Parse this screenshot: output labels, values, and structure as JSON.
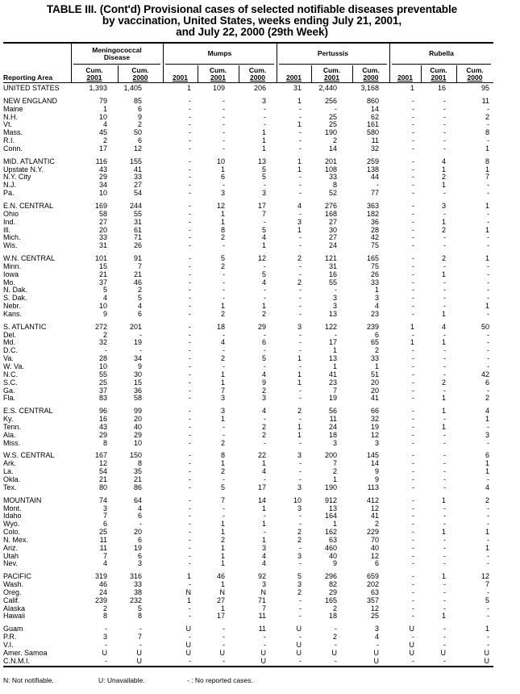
{
  "title": [
    "TABLE III. (Cont'd) Provisional cases of selected notifiable diseases preventable",
    "by vaccination, United States, weeks ending July 21, 2001,",
    "and July 22, 2000 (29th Week)"
  ],
  "header": {
    "reporting_area": "Reporting Area",
    "groups": [
      {
        "line1": "Meningococcal",
        "line2": "Disease"
      },
      {
        "line1": "Mumps",
        "line2": ""
      },
      {
        "line1": "Pertussis",
        "line2": ""
      },
      {
        "line1": "Rubella",
        "line2": ""
      }
    ],
    "subcols": [
      {
        "top": "Cum.",
        "bottom": "2001"
      },
      {
        "top": "Cum.",
        "bottom": "2000"
      },
      {
        "top": "",
        "bottom": "2001"
      },
      {
        "top": "Cum.",
        "bottom": "2001"
      },
      {
        "top": "Cum.",
        "bottom": "2000"
      },
      {
        "top": "",
        "bottom": "2001"
      },
      {
        "top": "Cum.",
        "bottom": "2001"
      },
      {
        "top": "Cum.",
        "bottom": "2000"
      },
      {
        "top": "",
        "bottom": "2001"
      },
      {
        "top": "Cum.",
        "bottom": "2001"
      },
      {
        "top": "Cum.",
        "bottom": "2000"
      }
    ]
  },
  "groups": [
    [
      [
        "UNITED STATES",
        "1,393",
        "1,405",
        "1",
        "109",
        "206",
        "31",
        "2,440",
        "3,168",
        "1",
        "16",
        "95"
      ]
    ],
    [
      [
        "NEW ENGLAND",
        "79",
        "85",
        "-",
        "-",
        "3",
        "1",
        "256",
        "860",
        "-",
        "-",
        "11"
      ],
      [
        "Maine",
        "1",
        "6",
        "-",
        "-",
        "-",
        "-",
        "-",
        "14",
        "-",
        "-",
        "-"
      ],
      [
        "N.H.",
        "10",
        "9",
        "-",
        "-",
        "-",
        "-",
        "25",
        "62",
        "-",
        "-",
        "2"
      ],
      [
        "Vt.",
        "4",
        "2",
        "-",
        "-",
        "-",
        "1",
        "25",
        "161",
        "-",
        "-",
        "-"
      ],
      [
        "Mass.",
        "45",
        "50",
        "-",
        "-",
        "1",
        "-",
        "190",
        "580",
        "-",
        "-",
        "8"
      ],
      [
        "R.I.",
        "2",
        "6",
        "-",
        "-",
        "1",
        "-",
        "2",
        "11",
        "-",
        "-",
        "-"
      ],
      [
        "Conn.",
        "17",
        "12",
        "-",
        "-",
        "1",
        "-",
        "14",
        "32",
        "-",
        "-",
        "1"
      ]
    ],
    [
      [
        "MID. ATLANTIC",
        "116",
        "155",
        "-",
        "10",
        "13",
        "1",
        "201",
        "259",
        "-",
        "4",
        "8"
      ],
      [
        "Upstate N.Y.",
        "43",
        "41",
        "-",
        "1",
        "5",
        "1",
        "108",
        "138",
        "-",
        "1",
        "1"
      ],
      [
        "N.Y. City",
        "29",
        "33",
        "-",
        "6",
        "5",
        "-",
        "33",
        "44",
        "-",
        "2",
        "7"
      ],
      [
        "N.J.",
        "34",
        "27",
        "-",
        "-",
        "-",
        "-",
        "8",
        "-",
        "-",
        "1",
        "-"
      ],
      [
        "Pa.",
        "10",
        "54",
        "-",
        "3",
        "3",
        "-",
        "52",
        "77",
        "-",
        "-",
        "-"
      ]
    ],
    [
      [
        "E.N. CENTRAL",
        "169",
        "244",
        "-",
        "12",
        "17",
        "4",
        "276",
        "363",
        "-",
        "3",
        "1"
      ],
      [
        "Ohio",
        "58",
        "55",
        "-",
        "1",
        "7",
        "-",
        "168",
        "182",
        "-",
        "-",
        "-"
      ],
      [
        "Ind.",
        "27",
        "31",
        "-",
        "1",
        "-",
        "3",
        "27",
        "36",
        "-",
        "1",
        "-"
      ],
      [
        "Ill.",
        "20",
        "61",
        "-",
        "8",
        "5",
        "1",
        "30",
        "28",
        "-",
        "2",
        "1"
      ],
      [
        "Mich.",
        "33",
        "71",
        "-",
        "2",
        "4",
        "-",
        "27",
        "42",
        "-",
        "-",
        "-"
      ],
      [
        "Wis.",
        "31",
        "26",
        "-",
        "-",
        "1",
        "-",
        "24",
        "75",
        "-",
        "-",
        "-"
      ]
    ],
    [
      [
        "W.N. CENTRAL",
        "101",
        "91",
        "-",
        "5",
        "12",
        "2",
        "121",
        "165",
        "-",
        "2",
        "1"
      ],
      [
        "Minn.",
        "15",
        "7",
        "-",
        "2",
        "-",
        "-",
        "31",
        "75",
        "-",
        "-",
        "-"
      ],
      [
        "Iowa",
        "21",
        "21",
        "-",
        "-",
        "5",
        "-",
        "16",
        "26",
        "-",
        "1",
        "-"
      ],
      [
        "Mo.",
        "37",
        "46",
        "-",
        "-",
        "4",
        "2",
        "55",
        "33",
        "-",
        "-",
        "-"
      ],
      [
        "N. Dak.",
        "5",
        "2",
        "-",
        "-",
        "-",
        "-",
        "-",
        "1",
        "-",
        "-",
        "-"
      ],
      [
        "S. Dak.",
        "4",
        "5",
        "-",
        "-",
        "-",
        "-",
        "3",
        "3",
        "-",
        "-",
        "-"
      ],
      [
        "Nebr.",
        "10",
        "4",
        "-",
        "1",
        "1",
        "-",
        "3",
        "4",
        "-",
        "-",
        "1"
      ],
      [
        "Kans.",
        "9",
        "6",
        "-",
        "2",
        "2",
        "-",
        "13",
        "23",
        "-",
        "1",
        "-"
      ]
    ],
    [
      [
        "S. ATLANTIC",
        "272",
        "201",
        "-",
        "18",
        "29",
        "3",
        "122",
        "239",
        "1",
        "4",
        "50"
      ],
      [
        "Del.",
        "2",
        "-",
        "-",
        "-",
        "-",
        "-",
        "-",
        "6",
        "-",
        "-",
        "-"
      ],
      [
        "Md.",
        "32",
        "19",
        "-",
        "4",
        "6",
        "-",
        "17",
        "65",
        "1",
        "1",
        "-"
      ],
      [
        "D.C.",
        "-",
        "-",
        "-",
        "-",
        "-",
        "-",
        "1",
        "2",
        "-",
        "-",
        "-"
      ],
      [
        "Va.",
        "28",
        "34",
        "-",
        "2",
        "5",
        "1",
        "13",
        "33",
        "-",
        "-",
        "-"
      ],
      [
        "W. Va.",
        "10",
        "9",
        "-",
        "-",
        "-",
        "-",
        "1",
        "1",
        "-",
        "-",
        "-"
      ],
      [
        "N.C.",
        "55",
        "30",
        "-",
        "1",
        "4",
        "1",
        "41",
        "51",
        "-",
        "-",
        "42"
      ],
      [
        "S.C.",
        "25",
        "15",
        "-",
        "1",
        "9",
        "1",
        "23",
        "20",
        "-",
        "2",
        "6"
      ],
      [
        "Ga.",
        "37",
        "36",
        "-",
        "7",
        "2",
        "-",
        "7",
        "20",
        "-",
        "-",
        "-"
      ],
      [
        "Fla.",
        "83",
        "58",
        "-",
        "3",
        "3",
        "-",
        "19",
        "41",
        "-",
        "1",
        "2"
      ]
    ],
    [
      [
        "E.S. CENTRAL",
        "96",
        "99",
        "-",
        "3",
        "4",
        "2",
        "56",
        "66",
        "-",
        "1",
        "4"
      ],
      [
        "Ky.",
        "16",
        "20",
        "-",
        "1",
        "-",
        "-",
        "11",
        "32",
        "-",
        "-",
        "1"
      ],
      [
        "Tenn.",
        "43",
        "40",
        "-",
        "-",
        "2",
        "1",
        "24",
        "19",
        "-",
        "1",
        "-"
      ],
      [
        "Ala.",
        "29",
        "29",
        "-",
        "-",
        "2",
        "1",
        "18",
        "12",
        "-",
        "-",
        "3"
      ],
      [
        "Miss.",
        "8",
        "10",
        "-",
        "2",
        "-",
        "-",
        "3",
        "3",
        "-",
        "-",
        "-"
      ]
    ],
    [
      [
        "W.S. CENTRAL",
        "167",
        "150",
        "-",
        "8",
        "22",
        "3",
        "200",
        "145",
        "-",
        "-",
        "6"
      ],
      [
        "Ark.",
        "12",
        "8",
        "-",
        "1",
        "1",
        "-",
        "7",
        "14",
        "-",
        "-",
        "1"
      ],
      [
        "La.",
        "54",
        "35",
        "-",
        "2",
        "4",
        "-",
        "2",
        "9",
        "-",
        "-",
        "1"
      ],
      [
        "Okla.",
        "21",
        "21",
        "-",
        "-",
        "-",
        "-",
        "1",
        "9",
        "-",
        "-",
        "-"
      ],
      [
        "Tex.",
        "80",
        "86",
        "-",
        "5",
        "17",
        "3",
        "190",
        "113",
        "-",
        "-",
        "4"
      ]
    ],
    [
      [
        "MOUNTAIN",
        "74",
        "64",
        "-",
        "7",
        "14",
        "10",
        "912",
        "412",
        "-",
        "1",
        "2"
      ],
      [
        "Mont.",
        "3",
        "4",
        "-",
        "-",
        "1",
        "3",
        "13",
        "12",
        "-",
        "-",
        "-"
      ],
      [
        "Idaho",
        "7",
        "6",
        "-",
        "-",
        "-",
        "-",
        "164",
        "41",
        "-",
        "-",
        "-"
      ],
      [
        "Wyo.",
        "6",
        "-",
        "-",
        "1",
        "1",
        "-",
        "1",
        "2",
        "-",
        "-",
        "-"
      ],
      [
        "Colo.",
        "25",
        "20",
        "-",
        "1",
        "-",
        "2",
        "162",
        "229",
        "-",
        "1",
        "1"
      ],
      [
        "N. Mex.",
        "11",
        "6",
        "-",
        "2",
        "1",
        "2",
        "63",
        "70",
        "-",
        "-",
        "-"
      ],
      [
        "Ariz.",
        "11",
        "19",
        "-",
        "1",
        "3",
        "-",
        "460",
        "40",
        "-",
        "-",
        "1"
      ],
      [
        "Utah",
        "7",
        "6",
        "-",
        "1",
        "4",
        "3",
        "40",
        "12",
        "-",
        "-",
        "-"
      ],
      [
        "Nev.",
        "4",
        "3",
        "-",
        "1",
        "4",
        "-",
        "9",
        "6",
        "-",
        "-",
        "-"
      ]
    ],
    [
      [
        "PACIFIC",
        "319",
        "316",
        "1",
        "46",
        "92",
        "5",
        "296",
        "659",
        "-",
        "1",
        "12"
      ],
      [
        "Wash.",
        "46",
        "33",
        "-",
        "1",
        "3",
        "3",
        "82",
        "202",
        "-",
        "-",
        "7"
      ],
      [
        "Oreg.",
        "24",
        "38",
        "N",
        "N",
        "N",
        "2",
        "29",
        "63",
        "-",
        "-",
        "-"
      ],
      [
        "Calif.",
        "239",
        "232",
        "1",
        "27",
        "71",
        "-",
        "165",
        "357",
        "-",
        "-",
        "5"
      ],
      [
        "Alaska",
        "2",
        "5",
        "-",
        "1",
        "7",
        "-",
        "2",
        "12",
        "-",
        "-",
        "-"
      ],
      [
        "Hawaii",
        "8",
        "8",
        "-",
        "17",
        "11",
        "-",
        "18",
        "25",
        "-",
        "1",
        "-"
      ]
    ],
    [
      [
        "Guam",
        "-",
        "-",
        "U",
        "-",
        "11",
        "U",
        "-",
        "3",
        "U",
        "-",
        "1"
      ],
      [
        "P.R.",
        "3",
        "7",
        "-",
        "-",
        "-",
        "-",
        "2",
        "4",
        "-",
        "-",
        "-"
      ],
      [
        "V.I.",
        "-",
        "-",
        "U",
        "-",
        "-",
        "U",
        "-",
        "-",
        "U",
        "-",
        "-"
      ],
      [
        "Amer. Samoa",
        "U",
        "U",
        "U",
        "U",
        "U",
        "U",
        "U",
        "U",
        "U",
        "U",
        "U"
      ],
      [
        "C.N.M.I.",
        "-",
        "U",
        "-",
        "-",
        "U",
        "-",
        "-",
        "U",
        "-",
        "-",
        "U"
      ]
    ]
  ],
  "footnotes": [
    "N: Not notifiable.",
    "U: Unavailable.",
    "- : No reported cases."
  ]
}
